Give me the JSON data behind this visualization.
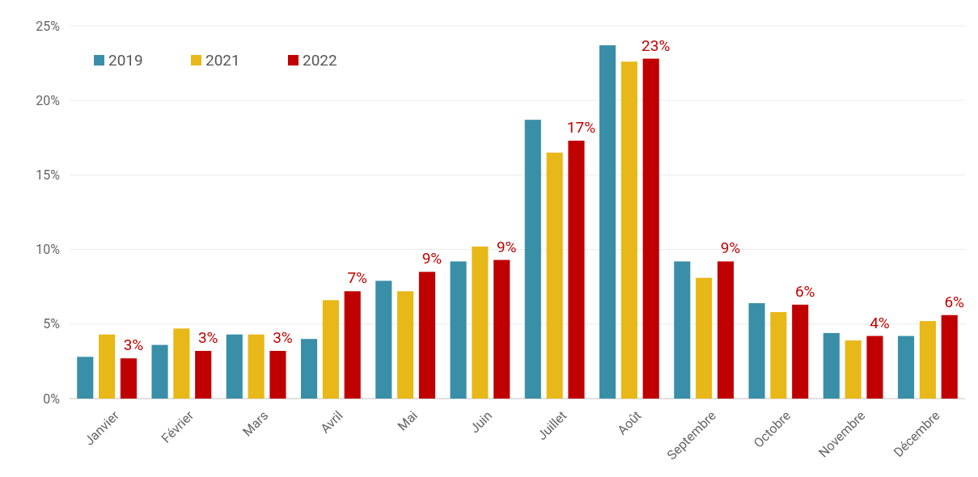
{
  "chart_data": {
    "type": "bar",
    "categories": [
      "Janvier",
      "Février",
      "Mars",
      "Avril",
      "Mai",
      "Juin",
      "Juillet",
      "Août",
      "Septembre",
      "Octobre",
      "Novembre",
      "Décembre"
    ],
    "series": [
      {
        "name": "2019",
        "color": "#3a8fa8",
        "values": [
          2.8,
          3.6,
          4.3,
          4.0,
          7.9,
          9.2,
          18.7,
          23.7,
          9.2,
          6.4,
          4.4,
          4.2
        ]
      },
      {
        "name": "2021",
        "color": "#e8b818",
        "values": [
          4.3,
          4.7,
          4.3,
          6.6,
          7.2,
          10.2,
          16.5,
          22.6,
          8.1,
          5.8,
          3.9,
          5.2
        ]
      },
      {
        "name": "2022",
        "color": "#c00000",
        "values": [
          2.7,
          3.2,
          3.2,
          7.2,
          8.5,
          9.3,
          17.3,
          22.8,
          9.2,
          6.3,
          4.2,
          5.6
        ],
        "value_labels": [
          "3%",
          "3%",
          "3%",
          "7%",
          "9%",
          "9%",
          "17%",
          "23%",
          "9%",
          "6%",
          "4%",
          "6%"
        ]
      }
    ],
    "ylim": [
      0,
      25
    ],
    "yticks": [
      {
        "value": 0,
        "label": "0%"
      },
      {
        "value": 5,
        "label": "5%"
      },
      {
        "value": 10,
        "label": "10%"
      },
      {
        "value": 15,
        "label": "15%"
      },
      {
        "value": 20,
        "label": "20%"
      },
      {
        "value": 25,
        "label": "25%"
      }
    ],
    "grid": "y",
    "legend": "top left"
  }
}
